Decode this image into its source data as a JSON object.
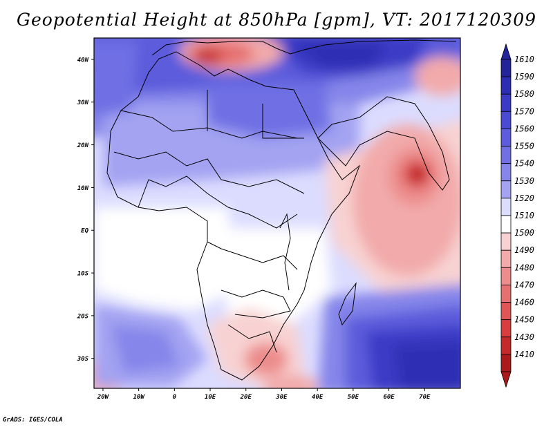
{
  "title": "Geopotential Height at 850hPa [gpm], VT: 2017120309",
  "credit": "GrADS: IGES/COLA",
  "map": {
    "region": "Africa and western Indian Ocean",
    "lat_ticks": [
      {
        "lat": 40,
        "label": "40N"
      },
      {
        "lat": 30,
        "label": "30N"
      },
      {
        "lat": 20,
        "label": "20N"
      },
      {
        "lat": 10,
        "label": "10N"
      },
      {
        "lat": 0,
        "label": "EQ"
      },
      {
        "lat": -10,
        "label": "10S"
      },
      {
        "lat": -20,
        "label": "20S"
      },
      {
        "lat": -30,
        "label": "30S"
      }
    ],
    "lon_ticks": [
      {
        "lon": -20,
        "label": "20W"
      },
      {
        "lon": -10,
        "label": "10W"
      },
      {
        "lon": 0,
        "label": "0"
      },
      {
        "lon": 10,
        "label": "10E"
      },
      {
        "lon": 20,
        "label": "20E"
      },
      {
        "lon": 30,
        "label": "30E"
      },
      {
        "lon": 40,
        "label": "40E"
      },
      {
        "lon": 50,
        "label": "50E"
      },
      {
        "lon": 60,
        "label": "60E"
      },
      {
        "lon": 70,
        "label": "70E"
      }
    ],
    "lon_range": [
      -22.5,
      80
    ],
    "lat_range": [
      -37,
      45
    ]
  },
  "colorbar": {
    "levels": [
      {
        "value": "1610",
        "color": "#24249a"
      },
      {
        "value": "1590",
        "color": "#2d2db4"
      },
      {
        "value": "1580",
        "color": "#3a3ac6"
      },
      {
        "value": "1570",
        "color": "#4a4ad2"
      },
      {
        "value": "1560",
        "color": "#5c5cdc"
      },
      {
        "value": "1550",
        "color": "#7070e4"
      },
      {
        "value": "1540",
        "color": "#8585ea"
      },
      {
        "value": "1530",
        "color": "#a3a3f2"
      },
      {
        "value": "1520",
        "color": "#dcdcff"
      },
      {
        "value": "1510",
        "color": "#ffffff"
      },
      {
        "value": "1500",
        "color": "#f8d2d2"
      },
      {
        "value": "1490",
        "color": "#f2aaaa"
      },
      {
        "value": "1480",
        "color": "#ec8c8c"
      },
      {
        "value": "1470",
        "color": "#e67070"
      },
      {
        "value": "1460",
        "color": "#e05656"
      },
      {
        "value": "1450",
        "color": "#d83e3e"
      },
      {
        "value": "1430",
        "color": "#c42a2a"
      },
      {
        "value": "1410",
        "color": "#aa1a1a"
      }
    ],
    "bottom_color": "#aa1a1a",
    "top_color": "#24249a"
  }
}
